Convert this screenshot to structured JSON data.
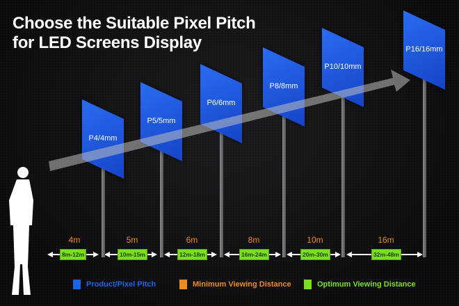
{
  "title": {
    "line1": "Choose the Suitable Pixel Pitch",
    "line2": "for LED Screens Display"
  },
  "panels": [
    {
      "label": "P4/4mm",
      "min": "4m",
      "optimum": "8m-12m"
    },
    {
      "label": "P5/5mm",
      "min": "5m",
      "optimum": "10m-15m"
    },
    {
      "label": "P6/6mm",
      "min": "6m",
      "optimum": "12m-18m"
    },
    {
      "label": "P8/8mm",
      "min": "8m",
      "optimum": "16m-24m"
    },
    {
      "label": "P10/10mm",
      "min": "10m",
      "optimum": "20m-30m"
    },
    {
      "label": "P16/16mm",
      "min": "16m",
      "optimum": "32m-48m"
    }
  ],
  "legend": [
    {
      "label": "Product/Pixel Pitch",
      "color": "#1a66e6"
    },
    {
      "label": "Minimum Viewing Distance",
      "color": "#f08a1c"
    },
    {
      "label": "Optimum Viewing Distance",
      "color": "#7be01c"
    }
  ]
}
